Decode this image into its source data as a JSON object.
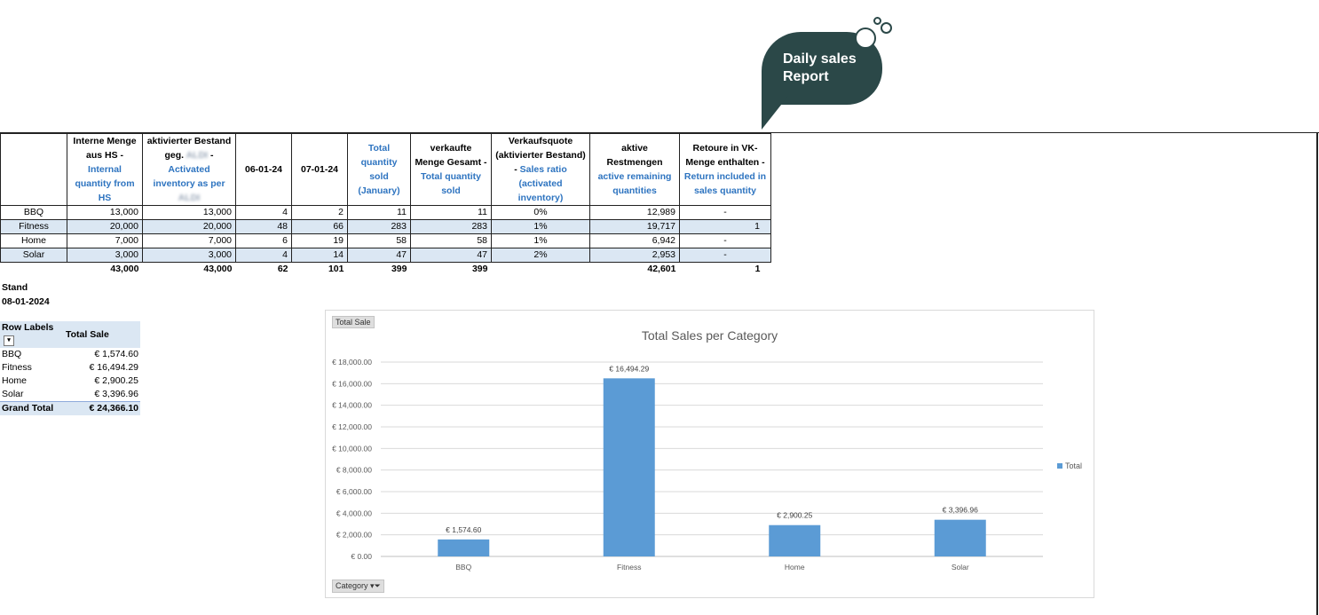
{
  "badge": {
    "line1": "Daily sales",
    "line2": "Report",
    "color": "#2b4848"
  },
  "table": {
    "headers": {
      "c1_de": "Interne Menge aus HS - ",
      "c1_en": "Internal quantity from HS",
      "c2_de": "aktivierter Bestand geg. ",
      "c2_blur": "ALDI",
      "c2_dash": " - ",
      "c2_en": "Activated inventory as per ",
      "c2_blur2": "ALDI",
      "c3": "06-01-24",
      "c4": "07-01-24",
      "c5_en": "Total quantity sold (January)",
      "c6_de": "verkaufte Menge Gesamt - ",
      "c6_en": "Total quantity sold",
      "c7_de": "Verkaufsquote (aktivierter Bestand) - ",
      "c7_en": "Sales ratio (activated inventory)",
      "c8_de": "aktive Restmengen",
      "c8_en": "active remaining quantities",
      "c9_de": "Retoure in VK-Menge enthalten - ",
      "c9_en": "Return included in sales quantity"
    },
    "rows": [
      {
        "cat": "BBQ",
        "c1": "13,000",
        "c2": "13,000",
        "c3": "4",
        "c4": "2",
        "c5": "11",
        "c6": "11",
        "c7": "0%",
        "c8": "12,989",
        "c9": "-"
      },
      {
        "cat": "Fitness",
        "c1": "20,000",
        "c2": "20,000",
        "c3": "48",
        "c4": "66",
        "c5": "283",
        "c6": "283",
        "c7": "1%",
        "c8": "19,717",
        "c9": "1"
      },
      {
        "cat": "Home",
        "c1": "7,000",
        "c2": "7,000",
        "c3": "6",
        "c4": "19",
        "c5": "58",
        "c6": "58",
        "c7": "1%",
        "c8": "6,942",
        "c9": "-"
      },
      {
        "cat": "Solar",
        "c1": "3,000",
        "c2": "3,000",
        "c3": "4",
        "c4": "14",
        "c5": "47",
        "c6": "47",
        "c7": "2%",
        "c8": "2,953",
        "c9": "-"
      }
    ],
    "totals": {
      "c1": "43,000",
      "c2": "43,000",
      "c3": "62",
      "c4": "101",
      "c5": "399",
      "c6": "399",
      "c8": "42,601",
      "c9": "1"
    }
  },
  "stand": {
    "label": "Stand",
    "date": "08-01-2024"
  },
  "pivot": {
    "header_labels": "Row Labels",
    "header_total": "Total Sale",
    "rows": [
      {
        "label": "BBQ",
        "value": "€ 1,574.60"
      },
      {
        "label": "Fitness",
        "value": "€ 16,494.29"
      },
      {
        "label": "Home",
        "value": "€ 2,900.25"
      },
      {
        "label": "Solar",
        "value": "€ 3,396.96"
      }
    ],
    "grand_label": "Grand Total",
    "grand_value": "€ 24,366.10"
  },
  "chart": {
    "field_value_button": "Total Sale",
    "field_axis_button": "Category",
    "legend_label": "Total",
    "color": "#5b9bd5"
  },
  "chart_data": {
    "type": "bar",
    "title": "Total Sales per Category",
    "categories": [
      "BBQ",
      "Fitness",
      "Home",
      "Solar"
    ],
    "series": [
      {
        "name": "Total",
        "values": [
          1574.6,
          16494.29,
          2900.25,
          3396.96
        ]
      }
    ],
    "data_labels": [
      "€ 1,574.60",
      "€ 16,494.29",
      "€ 2,900.25",
      "€ 3,396.96"
    ],
    "yticks": [
      "€ 0.00",
      "€ 2,000.00",
      "€ 4,000.00",
      "€ 6,000.00",
      "€ 8,000.00",
      "€ 10,000.00",
      "€ 12,000.00",
      "€ 14,000.00",
      "€ 16,000.00",
      "€ 18,000.00"
    ],
    "ylim": [
      0,
      18000
    ],
    "grid": true,
    "legend": "right"
  }
}
